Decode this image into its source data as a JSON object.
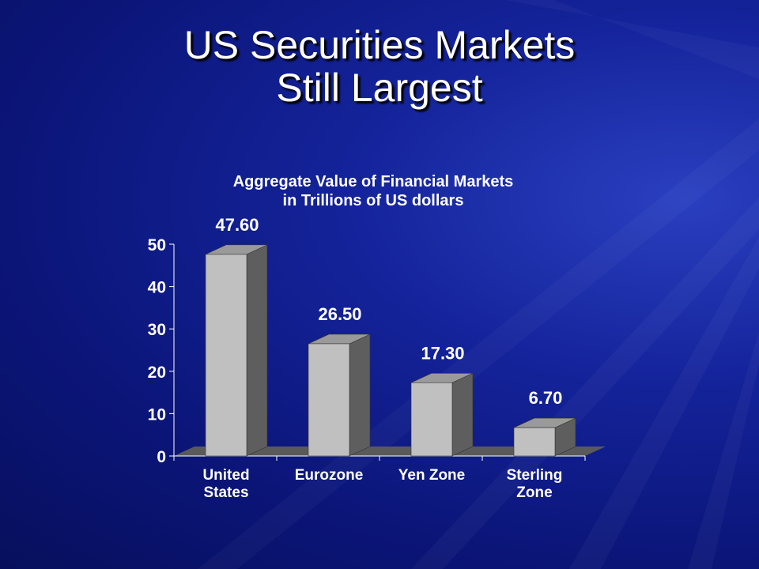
{
  "slide": {
    "title_line1": "US Securities Markets",
    "title_line2": "Still Largest"
  },
  "colors": {
    "background": "#0b1578",
    "bar_front": "#c0c0c0",
    "bar_side": "#5e5e5e",
    "bar_top": "#9a9a9a",
    "floor": "#5a5a5a",
    "text": "#ffffff"
  },
  "chart_data": {
    "type": "bar",
    "title_lines": [
      "Aggregate Value of Financial Markets",
      "in Trillions of US dollars"
    ],
    "categories": [
      [
        "United",
        "States"
      ],
      [
        "Eurozone"
      ],
      [
        "Yen Zone"
      ],
      [
        "Sterling",
        "Zone"
      ]
    ],
    "values": [
      47.6,
      26.5,
      17.3,
      6.7
    ],
    "value_labels": [
      "47.60",
      "26.50",
      "17.30",
      "6.70"
    ],
    "yticks": [
      0,
      10,
      20,
      30,
      40,
      50
    ],
    "ylim": [
      0,
      50
    ],
    "grid": false,
    "style": "3d-column"
  }
}
